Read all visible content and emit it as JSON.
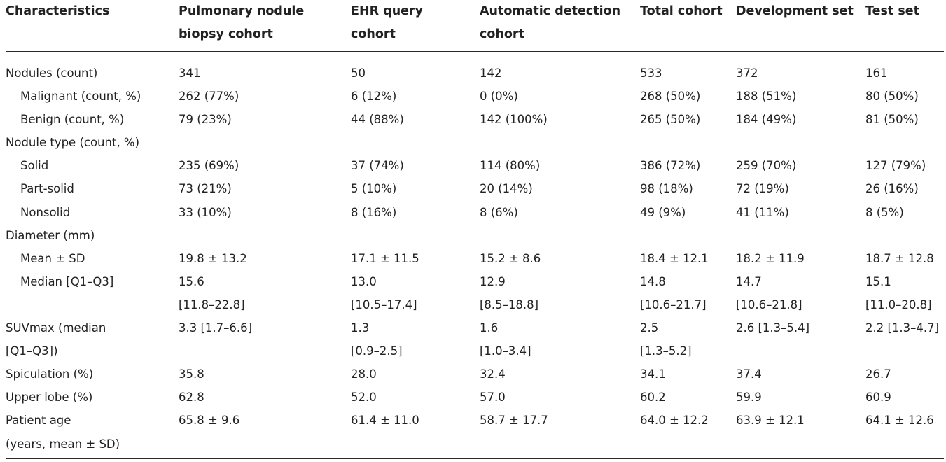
{
  "header": {
    "columns": [
      [
        "Characteristics"
      ],
      [
        "Pulmonary nodule",
        "biopsy cohort"
      ],
      [
        "EHR query",
        "cohort"
      ],
      [
        "Automatic detection",
        "cohort"
      ],
      [
        "Total cohort"
      ],
      [
        "Development set"
      ],
      [
        "Test set"
      ]
    ]
  },
  "rows": [
    {
      "label": [
        "Nodules (count)"
      ],
      "indent": false,
      "values": [
        [
          "341"
        ],
        [
          "50"
        ],
        [
          "142"
        ],
        [
          "533"
        ],
        [
          "372"
        ],
        [
          "161"
        ]
      ]
    },
    {
      "label": [
        "Malignant (count, %)"
      ],
      "indent": true,
      "values": [
        [
          "262 (77%)"
        ],
        [
          "6 (12%)"
        ],
        [
          "0 (0%)"
        ],
        [
          "268 (50%)"
        ],
        [
          "188 (51%)"
        ],
        [
          "80 (50%)"
        ]
      ]
    },
    {
      "label": [
        "Benign (count, %)"
      ],
      "indent": true,
      "values": [
        [
          "79 (23%)"
        ],
        [
          "44 (88%)"
        ],
        [
          "142 (100%)"
        ],
        [
          "265 (50%)"
        ],
        [
          "184 (49%)"
        ],
        [
          "81 (50%)"
        ]
      ]
    },
    {
      "label": [
        "Nodule type (count, %)"
      ],
      "indent": false,
      "values": [
        [
          ""
        ],
        [
          ""
        ],
        [
          ""
        ],
        [
          ""
        ],
        [
          ""
        ],
        [
          ""
        ]
      ]
    },
    {
      "label": [
        "Solid"
      ],
      "indent": true,
      "values": [
        [
          "235 (69%)"
        ],
        [
          "37 (74%)"
        ],
        [
          "114 (80%)"
        ],
        [
          "386 (72%)"
        ],
        [
          "259 (70%)"
        ],
        [
          "127 (79%)"
        ]
      ]
    },
    {
      "label": [
        "Part-solid"
      ],
      "indent": true,
      "values": [
        [
          "73 (21%)"
        ],
        [
          "5 (10%)"
        ],
        [
          "20 (14%)"
        ],
        [
          "98 (18%)"
        ],
        [
          "72 (19%)"
        ],
        [
          "26 (16%)"
        ]
      ]
    },
    {
      "label": [
        "Nonsolid"
      ],
      "indent": true,
      "values": [
        [
          "33 (10%)"
        ],
        [
          "8 (16%)"
        ],
        [
          "8 (6%)"
        ],
        [
          "49 (9%)"
        ],
        [
          "41 (11%)"
        ],
        [
          "8 (5%)"
        ]
      ]
    },
    {
      "label": [
        "Diameter (mm)"
      ],
      "indent": false,
      "values": [
        [
          ""
        ],
        [
          ""
        ],
        [
          ""
        ],
        [
          ""
        ],
        [
          ""
        ],
        [
          ""
        ]
      ]
    },
    {
      "label": [
        "Mean ± SD"
      ],
      "indent": true,
      "values": [
        [
          "19.8 ± 13.2"
        ],
        [
          "17.1 ± 11.5"
        ],
        [
          "15.2 ± 8.6"
        ],
        [
          "18.4 ± 12.1"
        ],
        [
          "18.2 ± 11.9"
        ],
        [
          "18.7 ± 12.8"
        ]
      ]
    },
    {
      "label": [
        "Median [Q1–Q3]"
      ],
      "indent": true,
      "values": [
        [
          "15.6",
          "[11.8–22.8]"
        ],
        [
          "13.0",
          "[10.5–17.4]"
        ],
        [
          "12.9",
          "[8.5–18.8]"
        ],
        [
          "14.8",
          "[10.6–21.7]"
        ],
        [
          "14.7",
          "[10.6–21.8]"
        ],
        [
          "15.1",
          "[11.0–20.8]"
        ]
      ]
    },
    {
      "label": [
        "SUVmax (median",
        "[Q1–Q3])"
      ],
      "indent": false,
      "values": [
        [
          "3.3 [1.7–6.6]"
        ],
        [
          "1.3",
          "[0.9–2.5]"
        ],
        [
          "1.6",
          "[1.0–3.4]"
        ],
        [
          "2.5",
          "[1.3–5.2]"
        ],
        [
          "2.6 [1.3–5.4]"
        ],
        [
          "2.2 [1.3–4.7]"
        ]
      ]
    },
    {
      "label": [
        "Spiculation (%)"
      ],
      "indent": false,
      "values": [
        [
          "35.8"
        ],
        [
          "28.0"
        ],
        [
          "32.4"
        ],
        [
          "34.1"
        ],
        [
          "37.4"
        ],
        [
          "26.7"
        ]
      ]
    },
    {
      "label": [
        "Upper lobe (%)"
      ],
      "indent": false,
      "values": [
        [
          "62.8"
        ],
        [
          "52.0"
        ],
        [
          "57.0"
        ],
        [
          "60.2"
        ],
        [
          "59.9"
        ],
        [
          "60.9"
        ]
      ]
    },
    {
      "label": [
        "Patient age",
        "(years, mean ± SD)"
      ],
      "indent": false,
      "values": [
        [
          "65.8 ± 9.6"
        ],
        [
          "61.4 ± 11.0"
        ],
        [
          "58.7 ± 17.7"
        ],
        [
          "64.0 ± 12.2"
        ],
        [
          "63.9 ± 12.1"
        ],
        [
          "64.1 ± 12.6"
        ]
      ]
    }
  ]
}
